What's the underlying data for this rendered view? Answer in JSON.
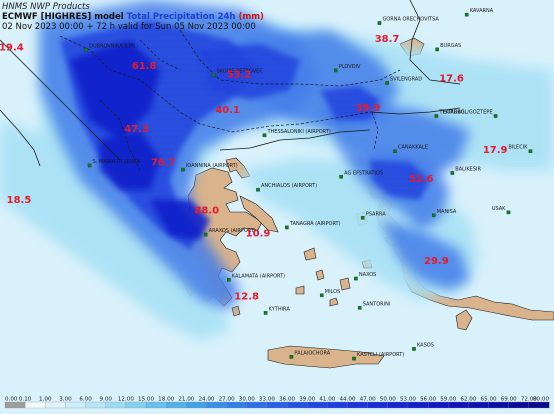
{
  "header": {
    "producer": "HNMS NWP Products",
    "model": "ECMWF [HIGHRES] model",
    "variable": "Total Precipitation 24h",
    "unit": "(mm)",
    "timing": "02 Nov 2023 00:00 + 72 h valid for Sun 05 Nov 2023 00:00"
  },
  "colors": {
    "sea": "#d8f1fb",
    "land": "#d9b38c",
    "light": "#a9e2f5",
    "mid": "#3f7be8",
    "heavy": "#1c3fe0",
    "extreme": "#0b1dc8",
    "text_red": "#e8192c"
  },
  "cities": [
    {
      "name": "GORNA ORECHOVITSA",
      "x": 26.0,
      "y": 43.2
    },
    {
      "name": "KAVARNA",
      "x": 28.3,
      "y": 43.4
    },
    {
      "name": "DUBROVNIK/CILIPI",
      "x": 18.27,
      "y": 42.56
    },
    {
      "name": "SKOPJE-PETROVEC",
      "x": 21.63,
      "y": 41.96
    },
    {
      "name": "PLOVDIV",
      "x": 24.85,
      "y": 42.07
    },
    {
      "name": "BURGAS",
      "x": 27.52,
      "y": 42.57
    },
    {
      "name": "SVILENGRAD",
      "x": 26.2,
      "y": 41.77
    },
    {
      "name": "TEKIRDAG",
      "x": 27.5,
      "y": 40.98
    },
    {
      "name": "ISTANBUL/GOZTEPE",
      "x": 29.06,
      "y": 40.98
    },
    {
      "name": "THESSALONIKI (AIRPORT)",
      "x": 22.97,
      "y": 40.52
    },
    {
      "name": "CANAKKALE",
      "x": 26.41,
      "y": 40.14
    },
    {
      "name": "BILECIK",
      "x": 29.98,
      "y": 40.14
    },
    {
      "name": "S. MARIA DI LEUCA",
      "x": 18.36,
      "y": 39.8
    },
    {
      "name": "IOANNINA (AIRPORT)",
      "x": 20.82,
      "y": 39.7
    },
    {
      "name": "AG EFSTRATIOS",
      "x": 24.99,
      "y": 39.53
    },
    {
      "name": "BALIKESIR",
      "x": 27.92,
      "y": 39.62
    },
    {
      "name": "ANCHIALOS (AIRPORT)",
      "x": 22.8,
      "y": 39.22
    },
    {
      "name": "USAK",
      "x": 29.4,
      "y": 38.68
    },
    {
      "name": "PSARRA",
      "x": 25.56,
      "y": 38.55
    },
    {
      "name": "MANISA",
      "x": 27.43,
      "y": 38.61
    },
    {
      "name": "TANAGRA (AIRPORT)",
      "x": 23.56,
      "y": 38.32
    },
    {
      "name": "ARAXOS (AIRPORT)",
      "x": 21.42,
      "y": 38.15
    },
    {
      "name": "KALAMATA (AIRPORT)",
      "x": 22.03,
      "y": 37.07
    },
    {
      "name": "MILOS",
      "x": 24.48,
      "y": 36.7
    },
    {
      "name": "NAXOS",
      "x": 25.38,
      "y": 37.1
    },
    {
      "name": "SANTORINI",
      "x": 25.48,
      "y": 36.4
    },
    {
      "name": "KYTHIRA",
      "x": 23.0,
      "y": 36.28
    },
    {
      "name": "KASOS",
      "x": 26.91,
      "y": 35.42
    },
    {
      "name": "PALAIOCHORA",
      "x": 23.68,
      "y": 35.23
    },
    {
      "name": "KASTELI (AIRPORT)",
      "x": 25.33,
      "y": 35.19
    }
  ],
  "precip_labels": [
    {
      "value": "19.4",
      "x": 16.3,
      "y": 42.55
    },
    {
      "value": "38.7",
      "x": 26.2,
      "y": 42.75
    },
    {
      "value": "61.8",
      "x": 19.8,
      "y": 42.1
    },
    {
      "value": "53.2",
      "x": 22.3,
      "y": 41.9
    },
    {
      "value": "17.6",
      "x": 27.9,
      "y": 41.8
    },
    {
      "value": "39.9",
      "x": 25.7,
      "y": 41.1
    },
    {
      "value": "40.1",
      "x": 22.0,
      "y": 41.05
    },
    {
      "value": "47.3",
      "x": 19.6,
      "y": 40.6
    },
    {
      "value": "17.9",
      "x": 29.05,
      "y": 40.1
    },
    {
      "value": "76.7",
      "x": 20.3,
      "y": 39.8
    },
    {
      "value": "52.6",
      "x": 27.1,
      "y": 39.4
    },
    {
      "value": "18.5",
      "x": 16.5,
      "y": 38.9
    },
    {
      "value": "88.0",
      "x": 21.45,
      "y": 38.65
    },
    {
      "value": "10.9",
      "x": 22.8,
      "y": 38.1
    },
    {
      "value": "29.9",
      "x": 27.5,
      "y": 37.45
    },
    {
      "value": "12.8",
      "x": 22.5,
      "y": 36.6
    }
  ],
  "colorbar": {
    "labels": [
      "0.00",
      "0.10",
      "1.00",
      "3.00",
      "6.00",
      "9.00",
      "12.00",
      "15.00",
      "18.00",
      "21.00",
      "24.00",
      "27.00",
      "30.00",
      "33.00",
      "36.00",
      "39.00",
      "41.00",
      "44.00",
      "47.00",
      "50.00",
      "53.00",
      "56.00",
      "59.00",
      "62.00",
      "65.00",
      "69.00",
      "72.00",
      "80.00"
    ],
    "colors": [
      "#9e9e9e",
      "#f4fbff",
      "#e1f4fc",
      "#cdeefb",
      "#b7e6f8",
      "#9ddcf4",
      "#83d0f0",
      "#68c1ec",
      "#52b0ea",
      "#43a0ea",
      "#3a8fea",
      "#337fea",
      "#2e6fe8",
      "#2a60e6",
      "#2652e4",
      "#2346e2",
      "#203ce0",
      "#1d33dc",
      "#1a2bd8",
      "#1724d2",
      "#141ecc",
      "#1218c4",
      "#1013bc",
      "#0e10b2",
      "#0d0da6",
      "#0c0b98",
      "#0b0a8a"
    ]
  }
}
